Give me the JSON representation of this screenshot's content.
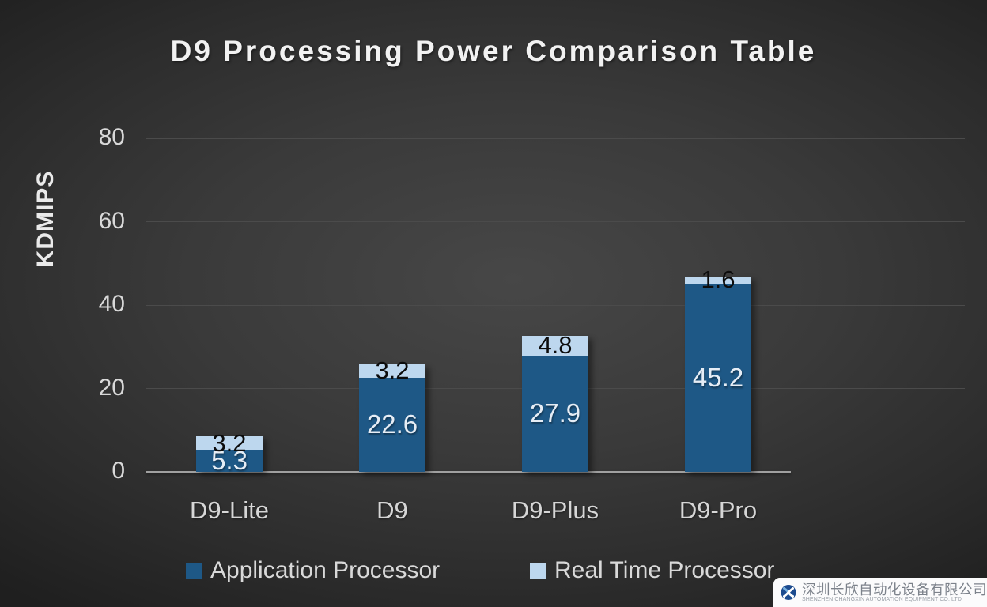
{
  "chart_data": {
    "type": "bar",
    "stacked": true,
    "title": "D9 Processing Power Comparison Table",
    "xlabel": "",
    "ylabel": "KDMIPS",
    "categories": [
      "D9-Lite",
      "D9",
      "D9-Plus",
      "D9-Pro"
    ],
    "series": [
      {
        "name": "Application Processor",
        "color": "#1e5886",
        "values": [
          5.3,
          22.6,
          27.9,
          45.2
        ]
      },
      {
        "name": "Real Time Processor",
        "color": "#bdd7ee",
        "values": [
          3.2,
          3.2,
          4.8,
          1.6
        ]
      }
    ],
    "ylim": [
      0,
      80
    ],
    "yticks": [
      0,
      20,
      40,
      60,
      80
    ],
    "grid": true,
    "legend_position": "bottom"
  },
  "footer_logo": {
    "company_cn": "深圳长欣自动化设备有限公司",
    "company_en": "SHENZHEN CHANGXIN AUTOMATION EQUIPMENT CO. LTD"
  },
  "colors": {
    "application_processor": "#1e5886",
    "real_time_processor": "#bdd7ee",
    "background_center": "#474747",
    "background_edge": "#1f1f1f",
    "gridline": "#4b4b4b",
    "axis_line": "#a0a0a0",
    "text_light": "#d9d9d9",
    "logo_navy": "#1c4b8f",
    "logo_light_blue": "#74aedd"
  }
}
